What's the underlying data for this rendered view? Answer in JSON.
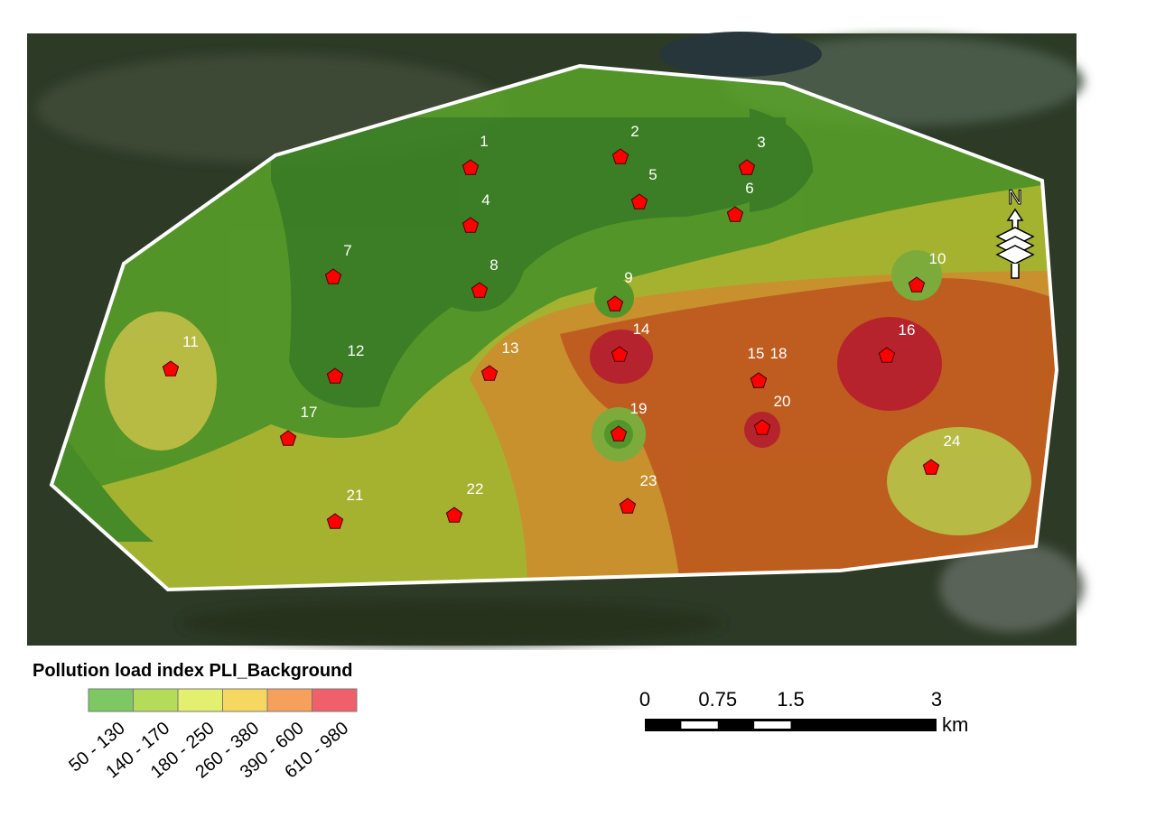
{
  "map": {
    "legend": {
      "title": "Pollution load index PLI_Background",
      "classes": [
        {
          "label": "50 - 130",
          "color": "#7dc862"
        },
        {
          "label": "140 - 170",
          "color": "#b4dc5a"
        },
        {
          "label": "180 - 250",
          "color": "#e3ef6e"
        },
        {
          "label": "260 - 380",
          "color": "#f6d860"
        },
        {
          "label": "390 - 600",
          "color": "#f5a05c"
        },
        {
          "label": "610 - 980",
          "color": "#f0606a"
        }
      ]
    },
    "points": [
      "1",
      "2",
      "3",
      "4",
      "5",
      "6",
      "7",
      "8",
      "9",
      "10",
      "11",
      "12",
      "13",
      "14",
      "15",
      "16",
      "17",
      "18",
      "19",
      "20",
      "21",
      "22",
      "23",
      "24"
    ],
    "scale_bar": {
      "ticks": [
        0,
        0.75,
        1.5,
        3
      ],
      "unit": "km"
    },
    "north_arrow": {
      "label": "N"
    }
  }
}
